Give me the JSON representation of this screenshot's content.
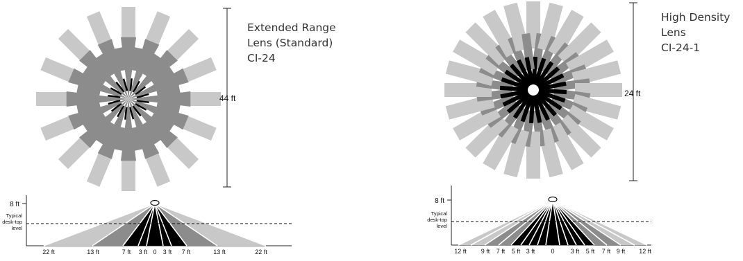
{
  "colors": {
    "light": "#c8c8c8",
    "mid": "#8c8c8c",
    "dark": "#000000",
    "text": "#333333"
  },
  "lenses": [
    {
      "title_lines": [
        "Extended Range",
        "Lens (Standard)",
        "CI-24"
      ],
      "overall_dimension": "44 ft",
      "ceiling_height": "8 ft",
      "desk_label": [
        "Typical",
        "desk-top",
        "level"
      ],
      "ground_ticks": [
        "22 ft",
        "13 ft",
        "7 ft",
        "3 ft",
        "0",
        "3 ft",
        "7 ft",
        "13 ft",
        "22 ft"
      ]
    },
    {
      "title_lines": [
        "High Density",
        "Lens",
        "CI-24-1"
      ],
      "overall_dimension": "24 ft",
      "ceiling_height": "8 ft",
      "desk_label": [
        "Typical",
        "desk-top",
        "level"
      ],
      "ground_ticks": [
        "12 ft",
        "9 ft",
        "7 ft",
        "5 ft",
        "3 ft",
        "0",
        "3 ft",
        "5 ft",
        "7 ft",
        "9 ft",
        "12 ft"
      ]
    }
  ]
}
